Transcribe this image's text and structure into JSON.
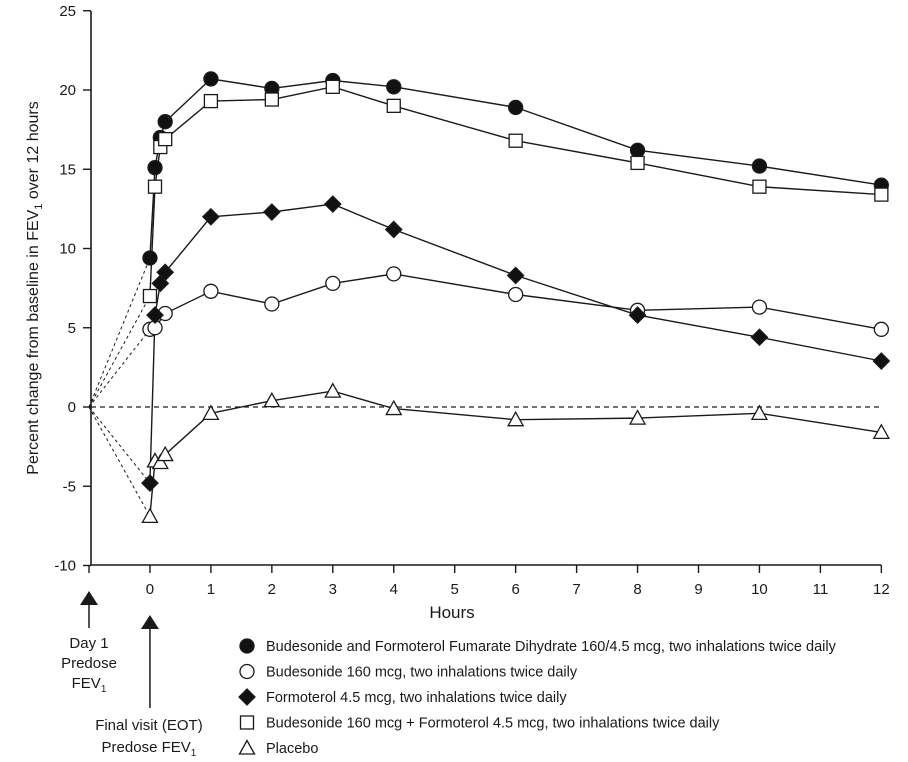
{
  "chart_data": {
    "type": "line",
    "title": "",
    "xlabel": "Hours",
    "ylabel": "Percent change from baseline in FEV1 over 12 hours",
    "ylabel_parts": {
      "pre": "Percent change from baseline in FEV",
      "sub": "1",
      "post": " over 12 hours"
    },
    "xlim": [
      -1,
      12
    ],
    "ylim": [
      -10,
      25
    ],
    "x_ticks": [
      0,
      1,
      2,
      3,
      4,
      5,
      6,
      7,
      8,
      9,
      10,
      11,
      12
    ],
    "x_tick_labels": [
      "0",
      "1",
      "2",
      "3",
      "4",
      "5",
      "6",
      "7",
      "8",
      "9",
      "10",
      "11",
      "12"
    ],
    "y_ticks": [
      -10,
      -5,
      0,
      5,
      10,
      15,
      20,
      25
    ],
    "y_tick_labels": [
      "-10",
      "-5",
      "0",
      "5",
      "10",
      "15",
      "20",
      "25"
    ],
    "grid": false,
    "reference_line": {
      "y": 0,
      "style": "dashed"
    },
    "baseline_point": {
      "x": -1,
      "y": 0
    },
    "annotations": [
      {
        "name": "day1-predose",
        "x": -1,
        "lines": [
          "Day 1",
          "Predose",
          "FEV"
        ],
        "sub": "1"
      },
      {
        "name": "final-visit-predose",
        "x": 0,
        "lines": [
          "Final visit (EOT)",
          "Predose FEV"
        ],
        "sub": "1"
      }
    ],
    "legend_position": "bottom",
    "series": [
      {
        "name": "Budesonide and Formoterol Fumarate Dihydrate 160/4.5 mcg, two inhalations twice daily",
        "marker": "filled-circle",
        "predose": 9.4,
        "x": [
          0,
          0.083,
          0.17,
          0.25,
          1,
          2,
          3,
          4,
          6,
          8,
          10,
          12
        ],
        "values": [
          9.4,
          15.1,
          17.0,
          18.0,
          20.7,
          20.1,
          20.6,
          20.2,
          18.9,
          16.2,
          15.2,
          14.0
        ]
      },
      {
        "name": "Budesonide 160 mcg, two inhalations twice daily",
        "marker": "open-circle",
        "predose": 4.9,
        "x": [
          0,
          0.083,
          0.25,
          1,
          2,
          3,
          4,
          6,
          8,
          10,
          12
        ],
        "values": [
          4.9,
          5.0,
          5.9,
          7.3,
          6.5,
          7.8,
          8.4,
          7.1,
          6.1,
          6.3,
          4.9
        ]
      },
      {
        "name": "Formoterol 4.5 mcg, two inhalations twice daily",
        "marker": "filled-diamond",
        "predose": -4.8,
        "x": [
          0,
          0.083,
          0.17,
          0.25,
          1,
          2,
          3,
          4,
          6,
          8,
          10,
          12
        ],
        "values": [
          -4.8,
          5.8,
          7.8,
          8.5,
          12.0,
          12.3,
          12.8,
          11.2,
          8.3,
          5.8,
          4.4,
          2.9
        ]
      },
      {
        "name": "Budesonide 160 mcg + Formoterol 4.5 mcg, two inhalations twice daily",
        "marker": "open-square",
        "predose": 7.0,
        "x": [
          0,
          0.083,
          0.17,
          0.25,
          1,
          2,
          3,
          4,
          6,
          8,
          10,
          12
        ],
        "values": [
          7.0,
          13.9,
          16.4,
          16.9,
          19.3,
          19.4,
          20.2,
          19.0,
          16.8,
          15.4,
          13.9,
          13.4
        ]
      },
      {
        "name": "Placebo",
        "marker": "open-triangle",
        "predose": -6.9,
        "x": [
          0,
          0.083,
          0.17,
          0.25,
          1,
          2,
          3,
          4,
          6,
          8,
          10,
          12
        ],
        "values": [
          -6.9,
          -3.4,
          -3.5,
          -3.0,
          -0.4,
          0.4,
          1.0,
          -0.1,
          -0.8,
          -0.7,
          -0.4,
          -1.6
        ]
      }
    ]
  },
  "colors": {
    "ink": "#1a1a1a",
    "background": "#ffffff",
    "marker_fill_dark": "#111111",
    "marker_fill_light": "#ffffff"
  }
}
